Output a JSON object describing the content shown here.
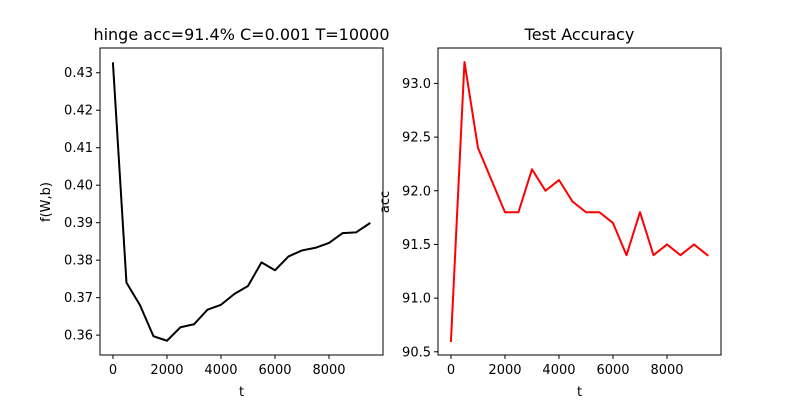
{
  "chart_data": [
    {
      "type": "line",
      "title": "hinge acc=91.4% C=0.001 T=10000",
      "xlabel": "t",
      "ylabel": "f(W,b)",
      "xlim": [
        -480,
        10000
      ],
      "ylim": [
        0.3547,
        0.4366
      ],
      "xticks": [
        0,
        2000,
        4000,
        6000,
        8000
      ],
      "yticks": [
        0.36,
        0.37,
        0.38,
        0.39,
        0.4,
        0.41,
        0.42,
        0.43
      ],
      "ytick_decimals": 2,
      "grid": false,
      "color": "#000000",
      "series": [
        {
          "x": [
            0,
            500,
            1000,
            1500,
            2000,
            2500,
            3000,
            3500,
            4000,
            4500,
            5000,
            5500,
            6000,
            6500,
            7000,
            7500,
            8000,
            8500,
            9000,
            9500
          ],
          "y": [
            0.4325,
            0.374,
            0.368,
            0.3597,
            0.3585,
            0.3621,
            0.3629,
            0.3668,
            0.3681,
            0.371,
            0.3731,
            0.3794,
            0.3773,
            0.381,
            0.3826,
            0.3833,
            0.3846,
            0.3872,
            0.3874,
            0.3898
          ]
        }
      ]
    },
    {
      "type": "line",
      "title": "Test Accuracy",
      "xlabel": "t",
      "ylabel": "acc",
      "xlim": [
        -480,
        10000
      ],
      "ylim": [
        90.47,
        93.33
      ],
      "xticks": [
        0,
        2000,
        4000,
        6000,
        8000
      ],
      "yticks": [
        90.5,
        91.0,
        91.5,
        92.0,
        92.5,
        93.0
      ],
      "ytick_decimals": 1,
      "grid": false,
      "color": "#ff0000",
      "series": [
        {
          "x": [
            0,
            500,
            1000,
            1500,
            2000,
            2500,
            3000,
            3500,
            4000,
            4500,
            5000,
            5500,
            6000,
            6500,
            7000,
            7500,
            8000,
            8500,
            9000,
            9500
          ],
          "y": [
            90.6,
            93.2,
            92.4,
            92.1,
            91.8,
            91.8,
            92.2,
            92.0,
            92.1,
            91.9,
            91.8,
            91.8,
            91.7,
            91.4,
            91.8,
            91.4,
            91.5,
            91.4,
            91.5,
            91.4
          ]
        }
      ]
    }
  ]
}
